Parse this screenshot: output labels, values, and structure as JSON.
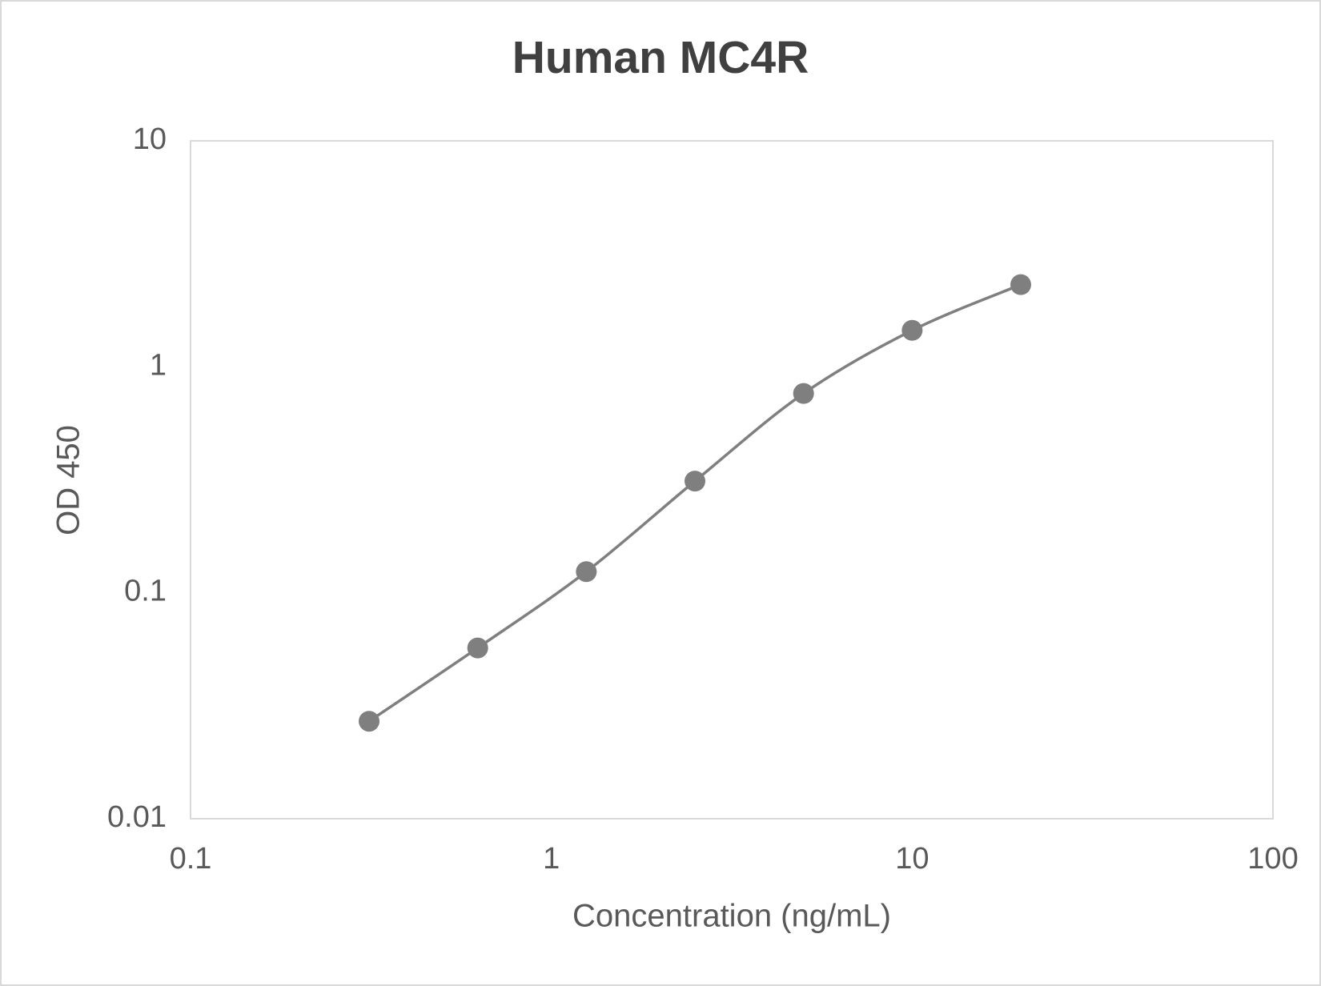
{
  "chart_data": {
    "type": "line",
    "title": "Human MC4R",
    "x_label": "Concentration (ng/mL)",
    "y_label": "OD 450",
    "x": [
      0.3125,
      0.625,
      1.25,
      2.5,
      5,
      10,
      20
    ],
    "series": [
      {
        "name": "Human MC4R",
        "color": "#7f7f7f",
        "values": [
          0.027,
          0.057,
          0.124,
          0.312,
          0.762,
          1.45,
          2.31
        ]
      }
    ],
    "xlim": [
      0.1,
      100
    ],
    "xticks": [
      0.1,
      1,
      10,
      100
    ],
    "ylim": [
      0.01,
      10
    ],
    "yticks": [
      0.01,
      0.1,
      1,
      10
    ],
    "xscale": "log",
    "yscale": "log",
    "grid": false,
    "smooth": true
  }
}
